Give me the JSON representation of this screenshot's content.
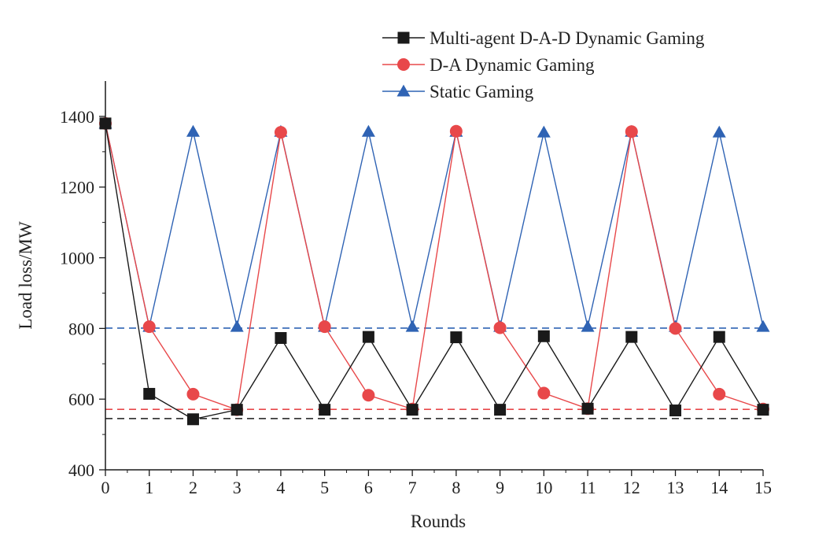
{
  "chart_data": {
    "type": "line",
    "xlabel": "Rounds",
    "ylabel": "Load loss/MW",
    "xlim": [
      0,
      15
    ],
    "ylim": [
      400,
      1500
    ],
    "x_ticks": [
      0,
      1,
      2,
      3,
      4,
      5,
      6,
      7,
      8,
      9,
      10,
      11,
      12,
      13,
      14,
      15
    ],
    "y_ticks": [
      400,
      600,
      800,
      1000,
      1200,
      1400
    ],
    "grid": false,
    "legend_position": "top-right",
    "x": [
      0,
      1,
      2,
      3,
      4,
      5,
      6,
      7,
      8,
      9,
      10,
      11,
      12,
      13,
      14,
      15
    ],
    "series": [
      {
        "name": "Multi-agent D-A-D Dynamic Gaming",
        "color": "#1a1a1a",
        "marker": "square",
        "values": [
          1380,
          615,
          543,
          570,
          773,
          570,
          776,
          570,
          775,
          570,
          778,
          573,
          776,
          568,
          776,
          570
        ]
      },
      {
        "name": "D-A Dynamic Gaming",
        "color": "#e8484a",
        "marker": "circle",
        "values": [
          1380,
          805,
          614,
          570,
          1355,
          805,
          611,
          572,
          1358,
          802,
          617,
          573,
          1357,
          800,
          614,
          572
        ]
      },
      {
        "name": "Static Gaming",
        "color": "#2f63b4",
        "marker": "triangle",
        "values": [
          1380,
          805,
          1357,
          805,
          1357,
          805,
          1357,
          805,
          1357,
          805,
          1355,
          805,
          1357,
          805,
          1355,
          805
        ]
      }
    ],
    "reference_lines": [
      {
        "y": 801,
        "color": "#2f63b4",
        "style": "dashed"
      },
      {
        "y": 571,
        "color": "#e8484a",
        "style": "dashed"
      },
      {
        "y": 545,
        "color": "#1a1a1a",
        "style": "dashed"
      }
    ]
  }
}
